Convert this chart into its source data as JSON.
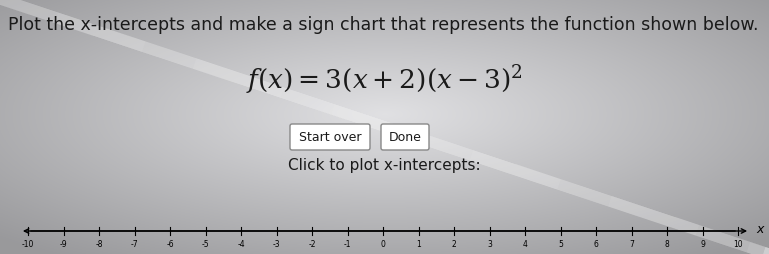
{
  "title_text": "Plot the x-intercepts and make a sign chart that represents the function shown below.",
  "formula_str": "$f(x) = 3(x+2)(x-3)^2$",
  "button1": "Start over",
  "button2": "Done",
  "click_text": "Click to plot x-intercepts:",
  "number_line_min": -10,
  "number_line_max": 10,
  "bg_color_edge": "#a0a0a8",
  "bg_color_center": "#d8d8dc",
  "title_fontsize": 12.5,
  "formula_fontsize": 19,
  "button_fontsize": 9,
  "click_fontsize": 11,
  "line_label_color": "#222222",
  "text_color": "#1a1a1a"
}
